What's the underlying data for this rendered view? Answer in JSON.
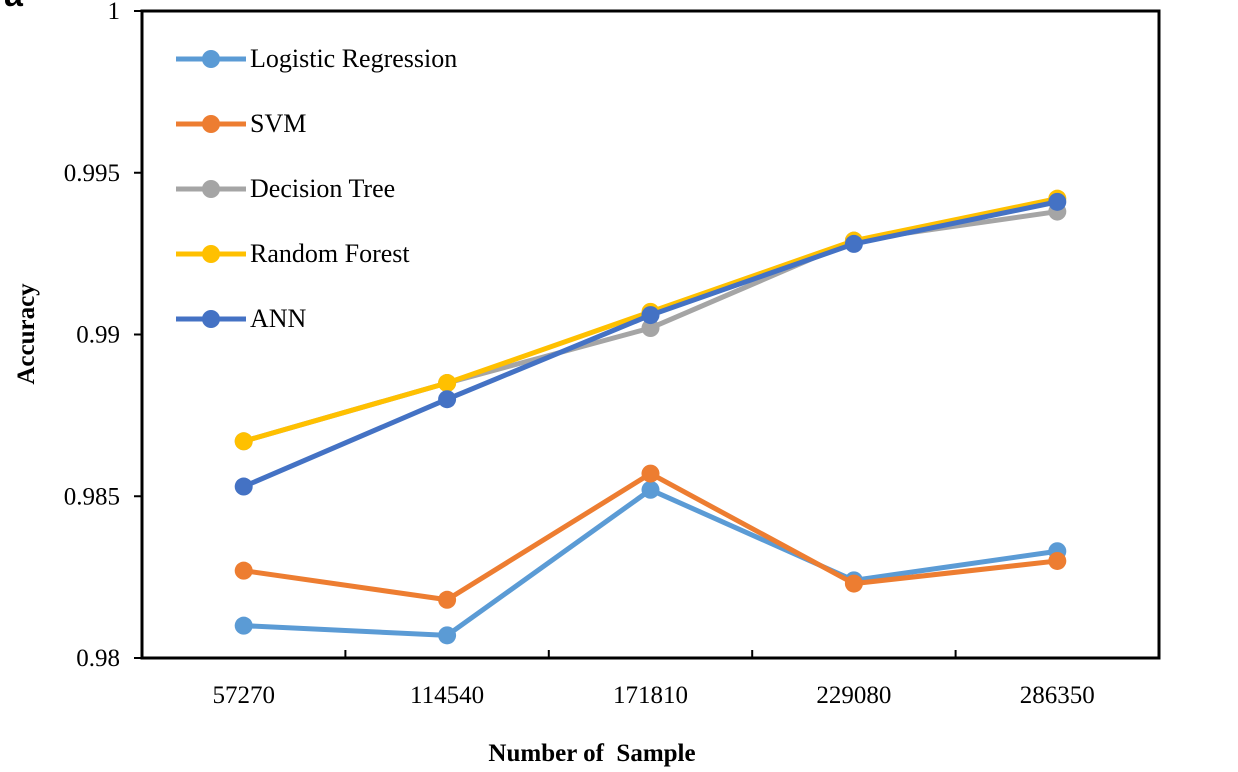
{
  "panel_letter": "a",
  "colors": {
    "Logistic Regression": "#5B9BD5",
    "SVM": "#ED7D31",
    "Decision Tree": "#A5A5A5",
    "Random Forest": "#FFC000",
    "ANN": "#4472C4"
  },
  "chart_data": {
    "type": "line",
    "title": "",
    "xlabel": "Number of  Sample",
    "ylabel": "Accuracy",
    "categories": [
      "57270",
      "114540",
      "171810",
      "229080",
      "286350"
    ],
    "ylim": [
      0.98,
      1
    ],
    "yticks": [
      "0.98",
      "0.985",
      "0.99",
      "0.995",
      "1"
    ],
    "grid": false,
    "legend_position": "top-left",
    "series": [
      {
        "name": "Logistic Regression",
        "values": [
          0.981,
          0.9807,
          0.9852,
          0.9824,
          0.9833
        ]
      },
      {
        "name": "SVM",
        "values": [
          0.9827,
          0.9818,
          0.9857,
          0.9823,
          0.983
        ]
      },
      {
        "name": "Decision Tree",
        "values": [
          0.9867,
          0.9885,
          0.9902,
          0.9929,
          0.9938
        ]
      },
      {
        "name": "Random Forest",
        "values": [
          0.9867,
          0.9885,
          0.9907,
          0.9929,
          0.9942
        ]
      },
      {
        "name": "ANN",
        "values": [
          0.9853,
          0.988,
          0.9906,
          0.9928,
          0.9941
        ]
      }
    ]
  }
}
